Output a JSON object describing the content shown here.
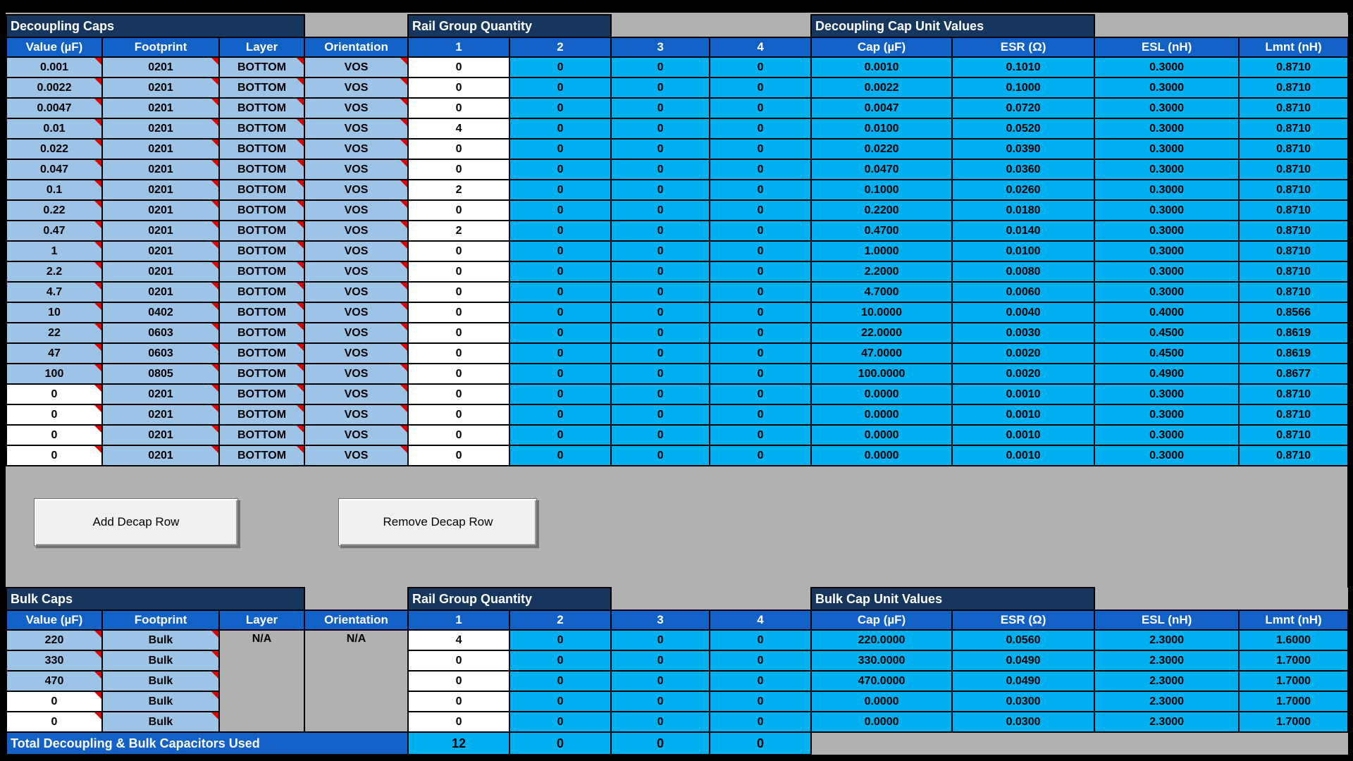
{
  "colors": {
    "title_navy": "#16365d",
    "header_blue": "#1261c7",
    "input_lightblue": "#9dc3e6",
    "computed_cyan": "#00b0f0",
    "canvas_gray": "#b1b1b1",
    "note_red": "#e00000"
  },
  "decap": {
    "title": "Decoupling Caps",
    "rail_title": "Rail Group Quantity",
    "unit_title": "Decoupling Cap Unit Values",
    "col_headers": [
      "Value (µF)",
      "Footprint",
      "Layer",
      "Orientation"
    ],
    "rail_headers": [
      "1",
      "2",
      "3",
      "4"
    ],
    "unit_headers": [
      "Cap (µF)",
      "ESR (Ω)",
      "ESL (nH)",
      "Lmnt (nH)"
    ],
    "rows": [
      {
        "value": "0.001",
        "footprint": "0201",
        "layer": "BOTTOM",
        "orientation": "VOS",
        "value_cell": "filled",
        "qty": [
          "0",
          "0",
          "0",
          "0"
        ],
        "cap": "0.0010",
        "esr": "0.1010",
        "esl": "0.3000",
        "lmnt": "0.8710"
      },
      {
        "value": "0.0022",
        "footprint": "0201",
        "layer": "BOTTOM",
        "orientation": "VOS",
        "value_cell": "filled",
        "qty": [
          "0",
          "0",
          "0",
          "0"
        ],
        "cap": "0.0022",
        "esr": "0.1000",
        "esl": "0.3000",
        "lmnt": "0.8710"
      },
      {
        "value": "0.0047",
        "footprint": "0201",
        "layer": "BOTTOM",
        "orientation": "VOS",
        "value_cell": "filled",
        "qty": [
          "0",
          "0",
          "0",
          "0"
        ],
        "cap": "0.0047",
        "esr": "0.0720",
        "esl": "0.3000",
        "lmnt": "0.8710"
      },
      {
        "value": "0.01",
        "footprint": "0201",
        "layer": "BOTTOM",
        "orientation": "VOS",
        "value_cell": "filled",
        "qty": [
          "4",
          "0",
          "0",
          "0"
        ],
        "cap": "0.0100",
        "esr": "0.0520",
        "esl": "0.3000",
        "lmnt": "0.8710"
      },
      {
        "value": "0.022",
        "footprint": "0201",
        "layer": "BOTTOM",
        "orientation": "VOS",
        "value_cell": "filled",
        "qty": [
          "0",
          "0",
          "0",
          "0"
        ],
        "cap": "0.0220",
        "esr": "0.0390",
        "esl": "0.3000",
        "lmnt": "0.8710"
      },
      {
        "value": "0.047",
        "footprint": "0201",
        "layer": "BOTTOM",
        "orientation": "VOS",
        "value_cell": "filled",
        "qty": [
          "0",
          "0",
          "0",
          "0"
        ],
        "cap": "0.0470",
        "esr": "0.0360",
        "esl": "0.3000",
        "lmnt": "0.8710"
      },
      {
        "value": "0.1",
        "footprint": "0201",
        "layer": "BOTTOM",
        "orientation": "VOS",
        "value_cell": "filled",
        "qty": [
          "2",
          "0",
          "0",
          "0"
        ],
        "cap": "0.1000",
        "esr": "0.0260",
        "esl": "0.3000",
        "lmnt": "0.8710"
      },
      {
        "value": "0.22",
        "footprint": "0201",
        "layer": "BOTTOM",
        "orientation": "VOS",
        "value_cell": "filled",
        "qty": [
          "0",
          "0",
          "0",
          "0"
        ],
        "cap": "0.2200",
        "esr": "0.0180",
        "esl": "0.3000",
        "lmnt": "0.8710"
      },
      {
        "value": "0.47",
        "footprint": "0201",
        "layer": "BOTTOM",
        "orientation": "VOS",
        "value_cell": "filled",
        "qty": [
          "2",
          "0",
          "0",
          "0"
        ],
        "cap": "0.4700",
        "esr": "0.0140",
        "esl": "0.3000",
        "lmnt": "0.8710"
      },
      {
        "value": "1",
        "footprint": "0201",
        "layer": "BOTTOM",
        "orientation": "VOS",
        "value_cell": "filled",
        "qty": [
          "0",
          "0",
          "0",
          "0"
        ],
        "cap": "1.0000",
        "esr": "0.0100",
        "esl": "0.3000",
        "lmnt": "0.8710"
      },
      {
        "value": "2.2",
        "footprint": "0201",
        "layer": "BOTTOM",
        "orientation": "VOS",
        "value_cell": "filled",
        "qty": [
          "0",
          "0",
          "0",
          "0"
        ],
        "cap": "2.2000",
        "esr": "0.0080",
        "esl": "0.3000",
        "lmnt": "0.8710"
      },
      {
        "value": "4.7",
        "footprint": "0201",
        "layer": "BOTTOM",
        "orientation": "VOS",
        "value_cell": "filled",
        "qty": [
          "0",
          "0",
          "0",
          "0"
        ],
        "cap": "4.7000",
        "esr": "0.0060",
        "esl": "0.3000",
        "lmnt": "0.8710"
      },
      {
        "value": "10",
        "footprint": "0402",
        "layer": "BOTTOM",
        "orientation": "VOS",
        "value_cell": "filled",
        "qty": [
          "0",
          "0",
          "0",
          "0"
        ],
        "cap": "10.0000",
        "esr": "0.0040",
        "esl": "0.4000",
        "lmnt": "0.8566"
      },
      {
        "value": "22",
        "footprint": "0603",
        "layer": "BOTTOM",
        "orientation": "VOS",
        "value_cell": "filled",
        "qty": [
          "0",
          "0",
          "0",
          "0"
        ],
        "cap": "22.0000",
        "esr": "0.0030",
        "esl": "0.4500",
        "lmnt": "0.8619"
      },
      {
        "value": "47",
        "footprint": "0603",
        "layer": "BOTTOM",
        "orientation": "VOS",
        "value_cell": "filled",
        "qty": [
          "0",
          "0",
          "0",
          "0"
        ],
        "cap": "47.0000",
        "esr": "0.0020",
        "esl": "0.4500",
        "lmnt": "0.8619"
      },
      {
        "value": "100",
        "footprint": "0805",
        "layer": "BOTTOM",
        "orientation": "VOS",
        "value_cell": "filled",
        "qty": [
          "0",
          "0",
          "0",
          "0"
        ],
        "cap": "100.0000",
        "esr": "0.0020",
        "esl": "0.4900",
        "lmnt": "0.8677"
      },
      {
        "value": "0",
        "footprint": "0201",
        "layer": "BOTTOM",
        "orientation": "VOS",
        "value_cell": "empty",
        "qty": [
          "0",
          "0",
          "0",
          "0"
        ],
        "cap": "0.0000",
        "esr": "0.0010",
        "esl": "0.3000",
        "lmnt": "0.8710"
      },
      {
        "value": "0",
        "footprint": "0201",
        "layer": "BOTTOM",
        "orientation": "VOS",
        "value_cell": "empty",
        "qty": [
          "0",
          "0",
          "0",
          "0"
        ],
        "cap": "0.0000",
        "esr": "0.0010",
        "esl": "0.3000",
        "lmnt": "0.8710"
      },
      {
        "value": "0",
        "footprint": "0201",
        "layer": "BOTTOM",
        "orientation": "VOS",
        "value_cell": "empty",
        "qty": [
          "0",
          "0",
          "0",
          "0"
        ],
        "cap": "0.0000",
        "esr": "0.0010",
        "esl": "0.3000",
        "lmnt": "0.8710"
      },
      {
        "value": "0",
        "footprint": "0201",
        "layer": "BOTTOM",
        "orientation": "VOS",
        "value_cell": "empty",
        "qty": [
          "0",
          "0",
          "0",
          "0"
        ],
        "cap": "0.0000",
        "esr": "0.0010",
        "esl": "0.3000",
        "lmnt": "0.8710"
      }
    ]
  },
  "buttons": {
    "add_label": "Add Decap Row",
    "remove_label": "Remove Decap Row"
  },
  "bulk": {
    "title": "Bulk Caps",
    "rail_title": "Rail Group Quantity",
    "unit_title": "Bulk Cap Unit Values",
    "col_headers": [
      "Value (µF)",
      "Footprint",
      "Layer",
      "Orientation"
    ],
    "rail_headers": [
      "1",
      "2",
      "3",
      "4"
    ],
    "unit_headers": [
      "Cap (µF)",
      "ESR (Ω)",
      "ESL (nH)",
      "Lmnt (nH)"
    ],
    "layer_na": "N/A",
    "orientation_na": "N/A",
    "rows": [
      {
        "value": "220",
        "footprint": "Bulk",
        "value_cell": "filled",
        "qty": [
          "4",
          "0",
          "0",
          "0"
        ],
        "cap": "220.0000",
        "esr": "0.0560",
        "esl": "2.3000",
        "lmnt": "1.6000"
      },
      {
        "value": "330",
        "footprint": "Bulk",
        "value_cell": "filled",
        "qty": [
          "0",
          "0",
          "0",
          "0"
        ],
        "cap": "330.0000",
        "esr": "0.0490",
        "esl": "2.3000",
        "lmnt": "1.7000"
      },
      {
        "value": "470",
        "footprint": "Bulk",
        "value_cell": "filled",
        "qty": [
          "0",
          "0",
          "0",
          "0"
        ],
        "cap": "470.0000",
        "esr": "0.0490",
        "esl": "2.3000",
        "lmnt": "1.7000"
      },
      {
        "value": "0",
        "footprint": "Bulk",
        "value_cell": "empty",
        "qty": [
          "0",
          "0",
          "0",
          "0"
        ],
        "cap": "0.0000",
        "esr": "0.0300",
        "esl": "2.3000",
        "lmnt": "1.7000"
      },
      {
        "value": "0",
        "footprint": "Bulk",
        "value_cell": "empty",
        "qty": [
          "0",
          "0",
          "0",
          "0"
        ],
        "cap": "0.0000",
        "esr": "0.0300",
        "esl": "2.3000",
        "lmnt": "1.7000"
      }
    ]
  },
  "total": {
    "label": "Total Decoupling & Bulk Capacitors Used",
    "values": [
      "12",
      "0",
      "0",
      "0"
    ]
  }
}
